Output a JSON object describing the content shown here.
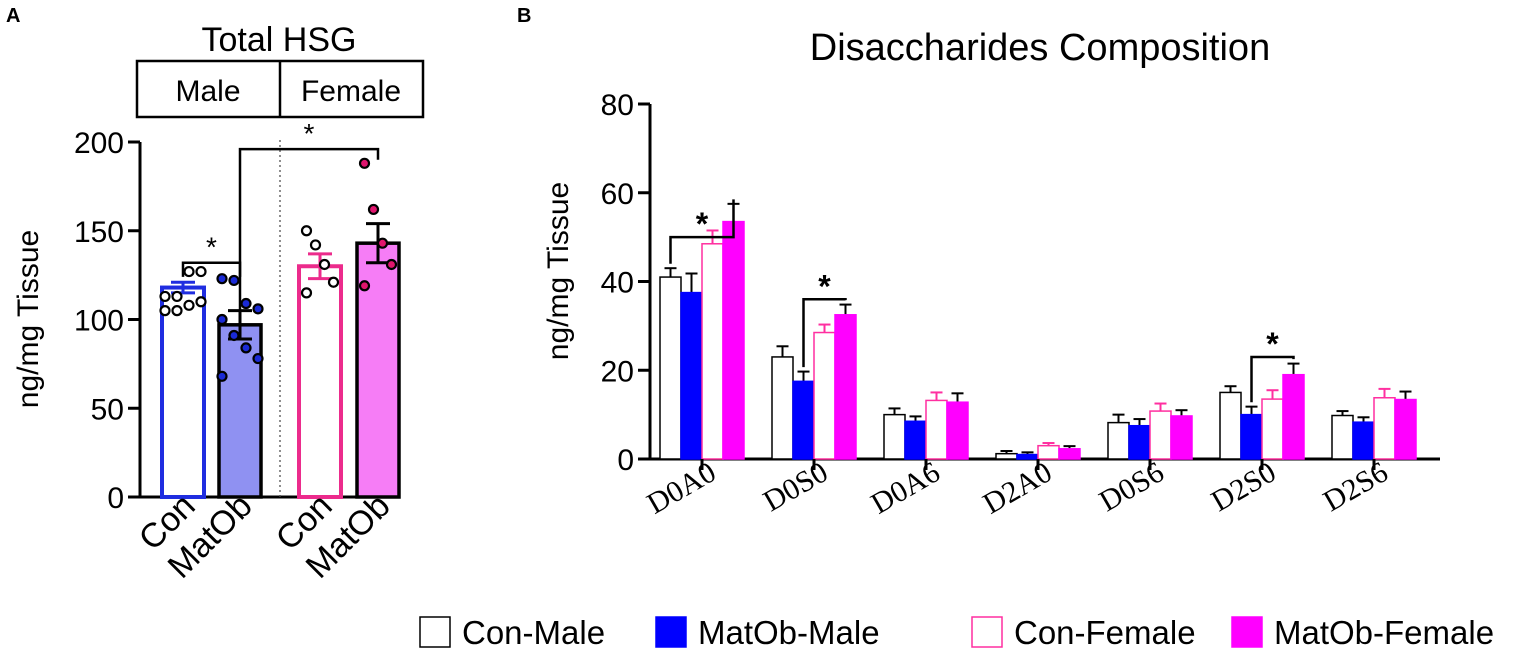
{
  "panels": {
    "a_label": "A",
    "b_label": "B"
  },
  "colors": {
    "male_con": "#1f2de0",
    "male_matob_fill": "#8f91f2",
    "female_con": "#ec2b8c",
    "female_matob_fill": "#f67df6",
    "male_matob_dot": "#1a2ad6",
    "female_matob_dot": "#e0156e",
    "b_blue": "#0000ff",
    "b_magenta": "#ff00ff",
    "b_pink_outline": "#ff2fa0"
  },
  "chart_data": [
    {
      "type": "bar",
      "title": "Total HSG",
      "header_groups": [
        "Male",
        "Female"
      ],
      "categories": [
        "Con",
        "MatOb",
        "Con",
        "MatOb"
      ],
      "ylabel": "ng/mg Tissue",
      "ylim": [
        0,
        200
      ],
      "yticks": [
        0,
        50,
        100,
        150,
        200
      ],
      "ytick_labels": [
        "0",
        "50",
        "100",
        "150",
        "200"
      ],
      "bars": [
        {
          "group": "Male",
          "name": "Con",
          "value": 118,
          "sem": 3,
          "style": "outline-blue",
          "points": [
            105,
            105,
            108,
            110,
            113,
            113,
            127,
            127
          ]
        },
        {
          "group": "Male",
          "name": "MatOb",
          "value": 97,
          "sem": 8,
          "style": "filled-blue",
          "points": [
            123,
            122,
            109,
            106,
            100,
            91,
            84,
            78,
            68
          ]
        },
        {
          "group": "Female",
          "name": "Con",
          "value": 130,
          "sem": 7,
          "style": "outline-pink",
          "points": [
            150,
            142,
            131,
            121,
            115
          ]
        },
        {
          "group": "Female",
          "name": "MatOb",
          "value": 143,
          "sem": 11,
          "style": "filled-pink",
          "points": [
            188,
            162,
            143,
            131,
            119
          ]
        }
      ],
      "significance": [
        {
          "from": 0,
          "to": 1,
          "label": "*"
        },
        {
          "from": 1,
          "to": 3,
          "label": "*"
        }
      ]
    },
    {
      "type": "bar",
      "title": "Disaccharides Composition",
      "xlabel": "",
      "ylabel": "ng/mg Tissue",
      "ylim": [
        0,
        80
      ],
      "yticks": [
        0,
        20,
        40,
        60,
        80
      ],
      "ytick_labels": [
        "0",
        "20",
        "40",
        "60",
        "80"
      ],
      "categories": [
        "D0A0",
        "D0S0",
        "D0A6",
        "D2A0",
        "D0S6",
        "D2S0",
        "D2S6"
      ],
      "series": [
        {
          "name": "Con-Male",
          "values": [
            41,
            23,
            10,
            1.2,
            8.2,
            15,
            9.8
          ],
          "errors": [
            2,
            2.4,
            1.4,
            0.6,
            1.8,
            1.4,
            1.0
          ]
        },
        {
          "name": "MatOb-Male",
          "values": [
            37.5,
            17.5,
            8.5,
            1.0,
            7.5,
            10,
            8.3
          ],
          "errors": [
            4.3,
            2.2,
            1.1,
            0.5,
            1.5,
            1.8,
            1.1
          ]
        },
        {
          "name": "Con-Female",
          "values": [
            48.5,
            28.5,
            13.2,
            3.0,
            10.8,
            13.5,
            13.8
          ],
          "errors": [
            3.0,
            1.8,
            1.8,
            0.6,
            1.7,
            2.0,
            2.0
          ]
        },
        {
          "name": "MatOb-Female",
          "values": [
            53.5,
            32.5,
            12.8,
            2.3,
            9.7,
            19,
            13.4
          ],
          "errors": [
            4.0,
            2.3,
            2.0,
            0.6,
            1.3,
            2.5,
            1.8
          ]
        }
      ],
      "significance": [
        {
          "category": 0,
          "from_series": 0,
          "to_series": 3,
          "label": "*"
        },
        {
          "category": 1,
          "from_series": 1,
          "to_series": 3,
          "label": "*"
        },
        {
          "category": 5,
          "from_series": 1,
          "to_series": 3,
          "label": "*"
        }
      ],
      "legend": {
        "placement": "bottom",
        "entries": [
          "Con-Male",
          "MatOb-Male",
          "Con-Female",
          "MatOb-Female"
        ]
      }
    }
  ]
}
